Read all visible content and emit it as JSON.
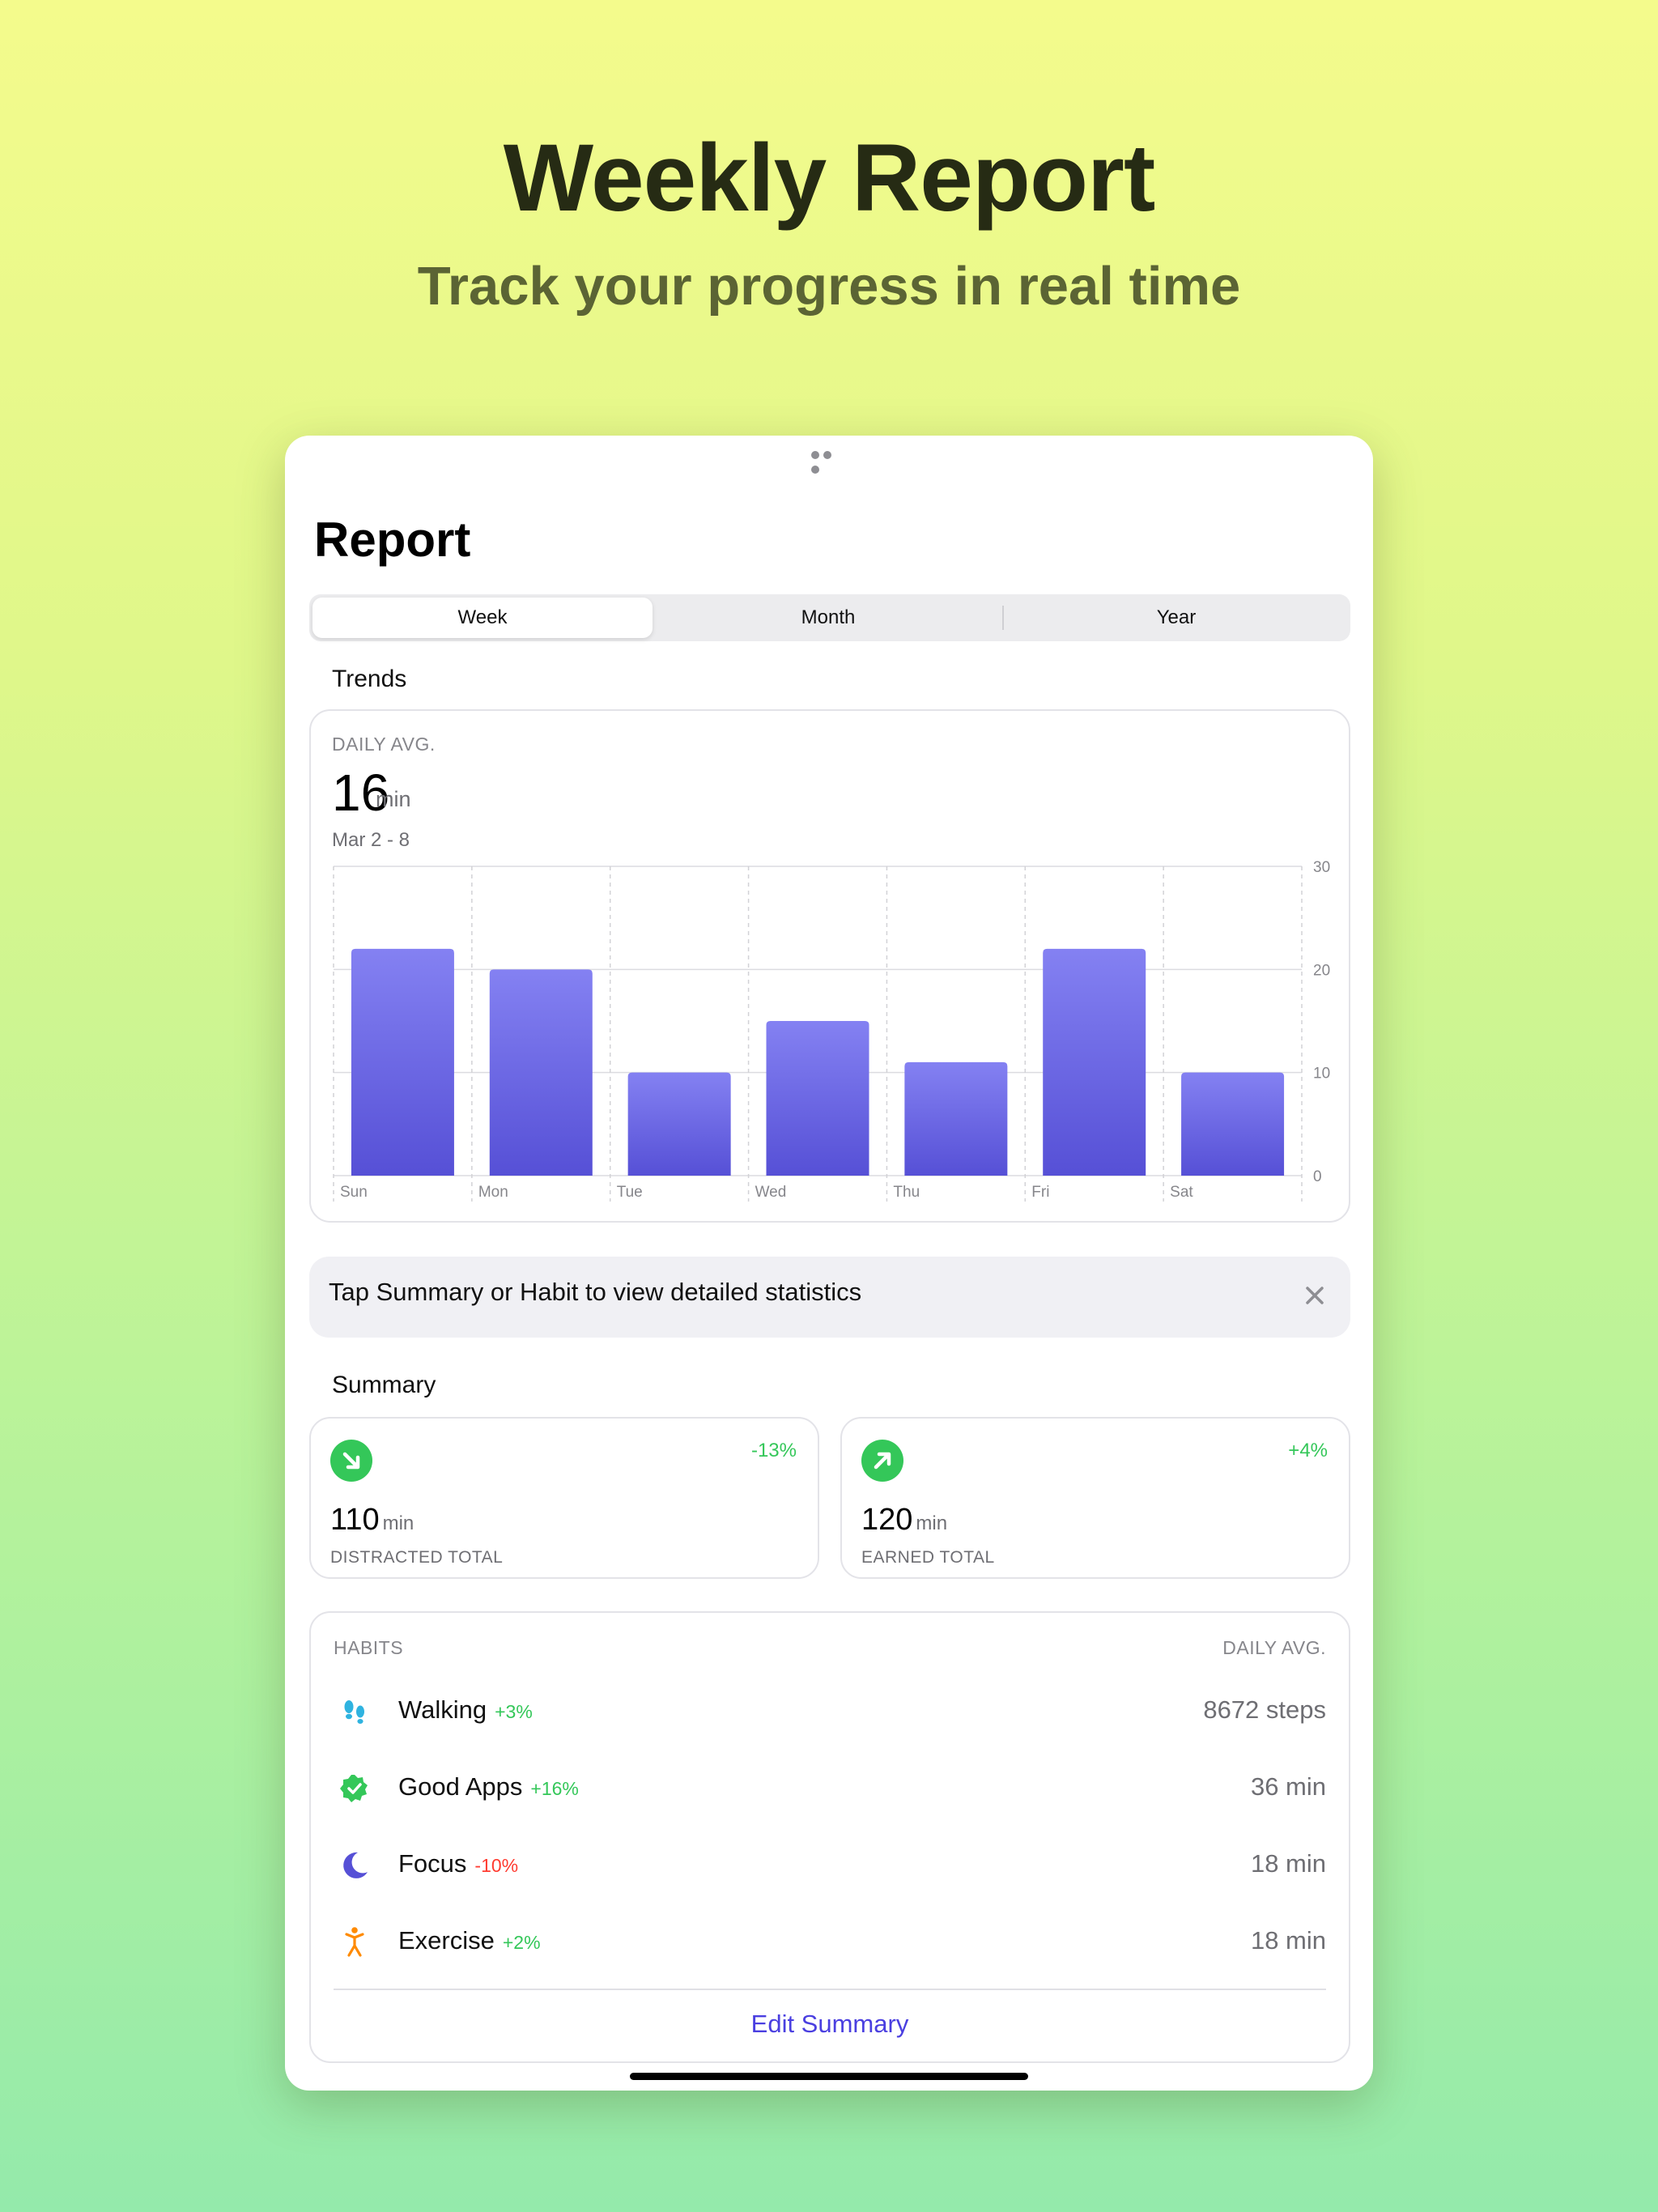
{
  "hero": {
    "title": "Weekly Report",
    "subtitle": "Track your progress in real time"
  },
  "screen": {
    "title": "Report",
    "segments": [
      "Week",
      "Month",
      "Year"
    ],
    "selected_segment": "Week"
  },
  "trends": {
    "section_label": "Trends",
    "daily_avg_label": "DAILY AVG.",
    "daily_avg_value": "16",
    "daily_avg_unit": "min",
    "date_range": "Mar 2 - 8"
  },
  "chart_data": {
    "type": "bar",
    "categories": [
      "Sun",
      "Mon",
      "Tue",
      "Wed",
      "Thu",
      "Fri",
      "Sat"
    ],
    "values": [
      22,
      20,
      10,
      15,
      11,
      22,
      10
    ],
    "ylim": [
      0,
      30
    ],
    "yticks": [
      0,
      10,
      20,
      30
    ],
    "grid": true,
    "bar_color_top": "#8481f2",
    "bar_color_bottom": "#5650d6"
  },
  "banner": {
    "text": "Tap Summary or Habit to view detailed statistics",
    "close_icon": "close-icon"
  },
  "summary": {
    "section_label": "Summary",
    "cards": [
      {
        "value": "110",
        "unit": "min",
        "caption": "DISTRACTED TOTAL",
        "change": "-13%",
        "icon": "arrow-down-right-icon"
      },
      {
        "value": "120",
        "unit": "min",
        "caption": "EARNED TOTAL",
        "change": "+4%",
        "icon": "arrow-up-right-icon"
      }
    ]
  },
  "habits": {
    "header_left": "HABITS",
    "header_right": "DAILY AVG.",
    "items": [
      {
        "name": "Walking",
        "change": "+3%",
        "value": "8672 steps",
        "icon": "footprints-icon"
      },
      {
        "name": "Good Apps",
        "change": "+16%",
        "value": "36 min",
        "icon": "verified-badge-icon"
      },
      {
        "name": "Focus",
        "change": "-10%",
        "value": "18 min",
        "icon": "moon-icon"
      },
      {
        "name": "Exercise",
        "change": "+2%",
        "value": "18 min",
        "icon": "figure-exercise-icon"
      }
    ],
    "edit_label": "Edit Summary"
  },
  "colors": {
    "accent": "#4a3fe0",
    "positive": "#34c759",
    "negative": "#ff3b30",
    "bar": "#6a66e6"
  }
}
